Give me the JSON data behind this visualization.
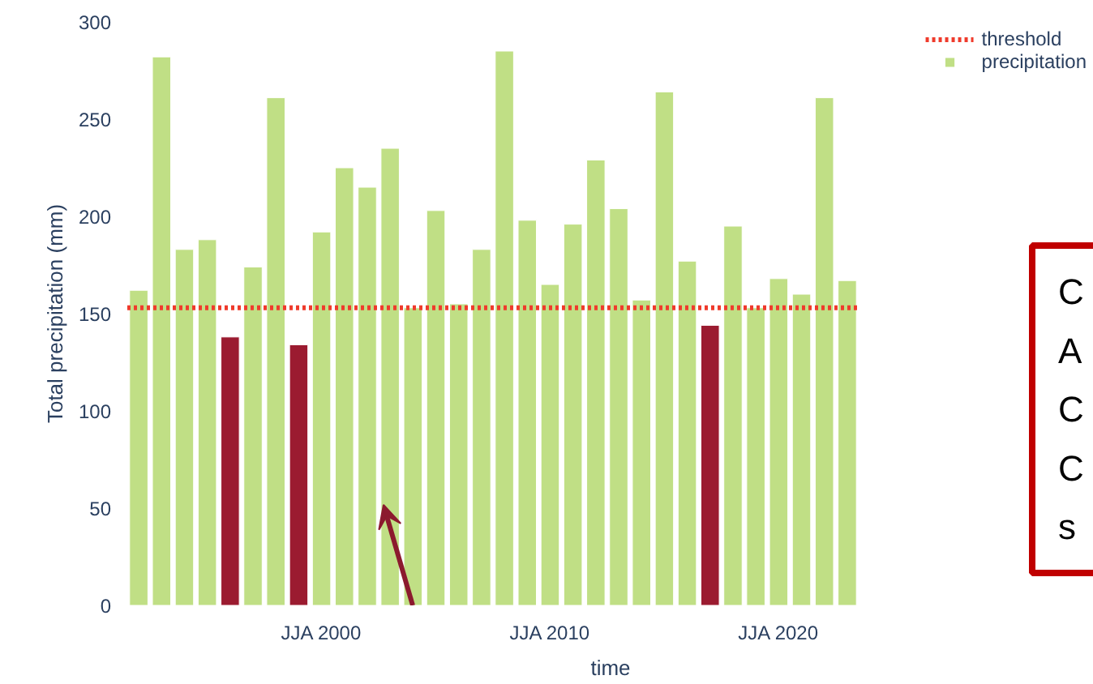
{
  "chart_data": {
    "type": "bar",
    "xlabel": "time",
    "ylabel": "Total precipitation (mm)",
    "categories": [
      null,
      null,
      null,
      null,
      null,
      null,
      null,
      null,
      "JJA 2000",
      null,
      null,
      null,
      null,
      null,
      null,
      null,
      null,
      null,
      "JJA 2010",
      null,
      null,
      null,
      null,
      null,
      null,
      null,
      null,
      null,
      "JJA 2020",
      null,
      null,
      null
    ],
    "series": [
      {
        "name": "precipitation",
        "color": "#c0df85",
        "values": [
          162,
          282,
          183,
          188,
          138,
          174,
          261,
          134,
          192,
          225,
          215,
          235,
          153,
          203,
          155,
          183,
          285,
          198,
          165,
          196,
          229,
          204,
          157,
          264,
          177,
          144,
          195,
          153,
          168,
          160,
          261,
          167
        ],
        "colors": [
          "#c0df85",
          "#c0df85",
          "#c0df85",
          "#c0df85",
          "#9b1b30",
          "#c0df85",
          "#c0df85",
          "#9b1b30",
          "#c0df85",
          "#c0df85",
          "#c0df85",
          "#c0df85",
          "#c0df85",
          "#c0df85",
          "#c0df85",
          "#c0df85",
          "#c0df85",
          "#c0df85",
          "#c0df85",
          "#c0df85",
          "#c0df85",
          "#c0df85",
          "#c0df85",
          "#c0df85",
          "#c0df85",
          "#9b1b30",
          "#c0df85",
          "#c0df85",
          "#c0df85",
          "#c0df85",
          "#c0df85",
          "#c0df85"
        ]
      }
    ],
    "ref_lines": [
      {
        "axis": "y",
        "value": 153,
        "label": "threshold",
        "color": "#ef3b2c",
        "line_style": "dotted"
      }
    ],
    "ylim": [
      0,
      300
    ],
    "yticks": [
      0,
      50,
      100,
      150,
      200,
      250,
      300
    ],
    "grid": false,
    "legend": "top right",
    "annotations": [
      "C\nA\nC\nC\ns"
    ]
  }
}
